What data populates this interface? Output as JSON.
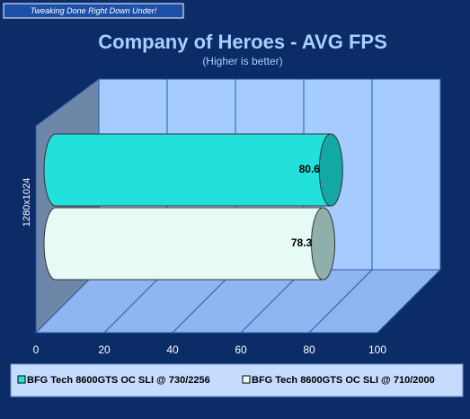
{
  "banner": "Tweaking Done Right Down Under!",
  "chart_data": {
    "type": "bar3d",
    "title": "Company of Heroes - AVG FPS",
    "subtitle": "(Higher is better)",
    "categories": [
      "1280x1024"
    ],
    "series": [
      {
        "name": "BFG Tech 8600GTS OC  SLI @ 730/2256",
        "color": "#22e0dc",
        "values": [
          80.6
        ]
      },
      {
        "name": "BFG Tech 8600GTS OC  SLI @ 710/2000",
        "color": "#e6fbf6",
        "values": [
          78.3
        ]
      }
    ],
    "xlim": [
      0,
      100
    ],
    "xticks": [
      0,
      20,
      40,
      60,
      80,
      100
    ],
    "grid": true,
    "legend": "bottom"
  }
}
